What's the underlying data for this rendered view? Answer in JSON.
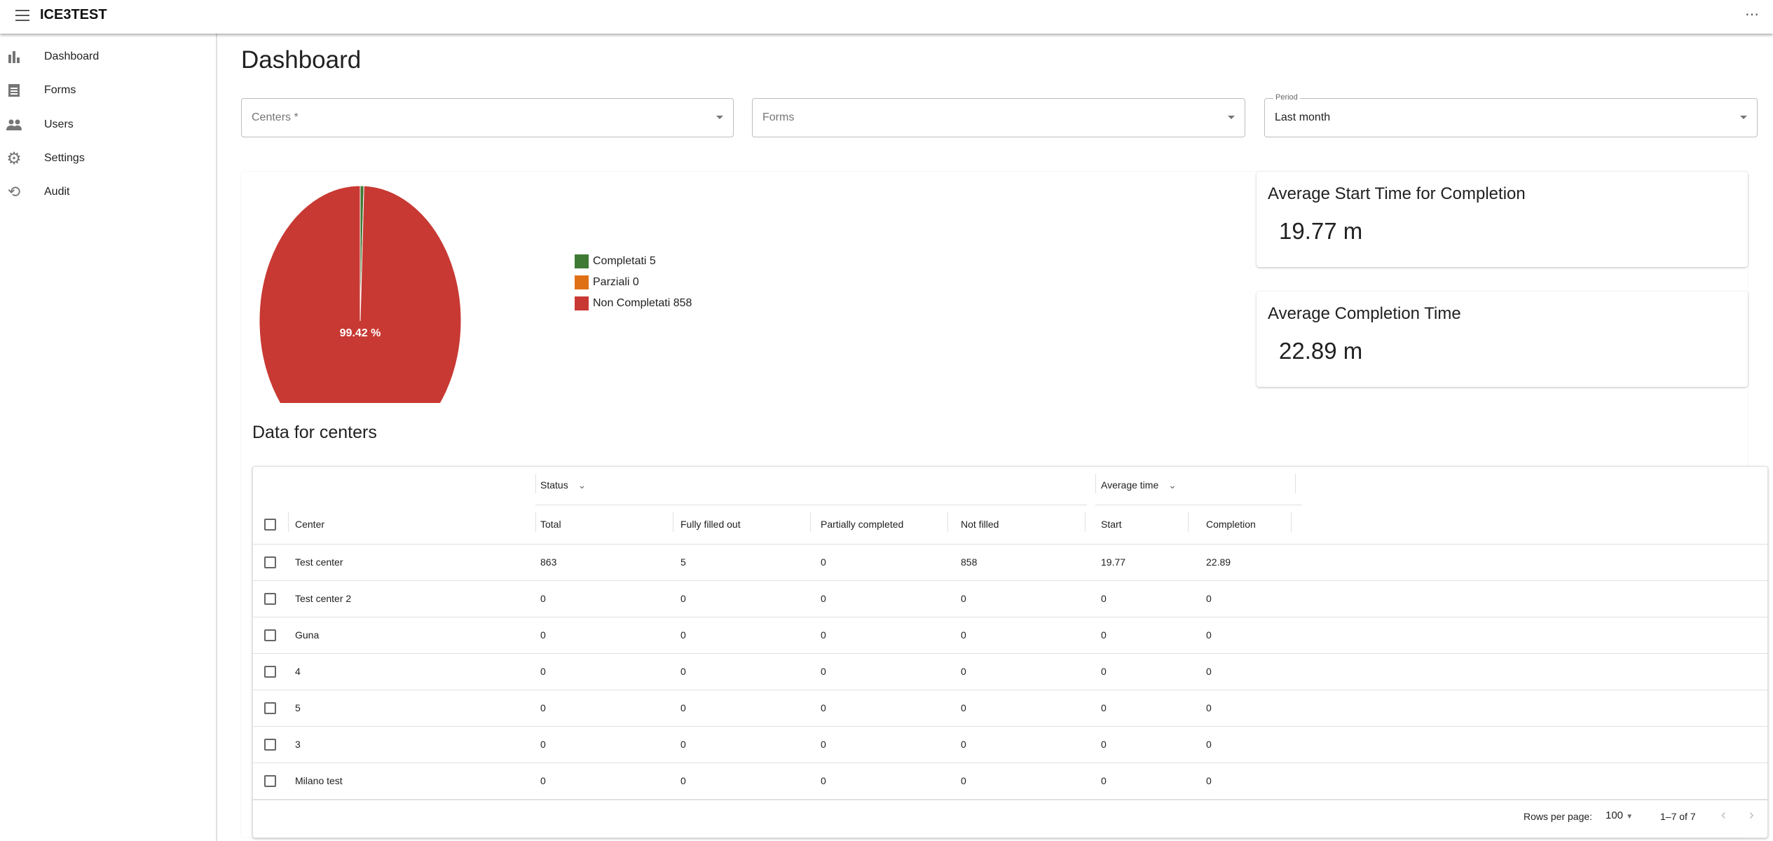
{
  "app": {
    "title": "ICE3TEST"
  },
  "sidebar": {
    "items": [
      {
        "label": "Dashboard",
        "icon": "bar-chart-icon"
      },
      {
        "label": "Forms",
        "icon": "form-icon"
      },
      {
        "label": "Users",
        "icon": "users-icon"
      },
      {
        "label": "Settings",
        "icon": "gear-icon"
      },
      {
        "label": "Audit",
        "icon": "history-icon"
      }
    ]
  },
  "page": {
    "title": "Dashboard"
  },
  "filters": {
    "centers": {
      "placeholder": "Centers *"
    },
    "forms": {
      "placeholder": "Forms"
    },
    "period": {
      "label": "Period",
      "value": "Last month"
    }
  },
  "chart_data": {
    "type": "pie",
    "slices": [
      {
        "name": "Completati",
        "value": 5,
        "color": "#3f7a35"
      },
      {
        "name": "Parziali",
        "value": 0,
        "color": "#e07016"
      },
      {
        "name": "Non Completati",
        "value": 858,
        "color": "#c83933"
      }
    ],
    "legend": [
      "Completati 5",
      "Parziali 0",
      "Non Completati 858"
    ],
    "data_label": "99.42 %",
    "legend_position": "right"
  },
  "stats": [
    {
      "title": "Average Start Time for Completion",
      "value": "19.77 m"
    },
    {
      "title": "Average Completion Time",
      "value": "22.89 m"
    }
  ],
  "table": {
    "title": "Data for centers",
    "groups": [
      "Status",
      "Average time"
    ],
    "columns": [
      "Center",
      "Total",
      "Fully filled out",
      "Partially completed",
      "Not filled",
      "Start",
      "Completion"
    ],
    "rows": [
      [
        "Test center",
        "863",
        "5",
        "0",
        "858",
        "19.77",
        "22.89"
      ],
      [
        "Test center 2",
        "0",
        "0",
        "0",
        "0",
        "0",
        "0"
      ],
      [
        "Guna",
        "0",
        "0",
        "0",
        "0",
        "0",
        "0"
      ],
      [
        "4",
        "0",
        "0",
        "0",
        "0",
        "0",
        "0"
      ],
      [
        "5",
        "0",
        "0",
        "0",
        "0",
        "0",
        "0"
      ],
      [
        "3",
        "0",
        "0",
        "0",
        "0",
        "0",
        "0"
      ],
      [
        "Milano test",
        "0",
        "0",
        "0",
        "0",
        "0",
        "0"
      ]
    ],
    "footer": {
      "rows_per_page_label": "Rows per page:",
      "rows_per_page": "100",
      "range": "1–7 of 7"
    }
  }
}
